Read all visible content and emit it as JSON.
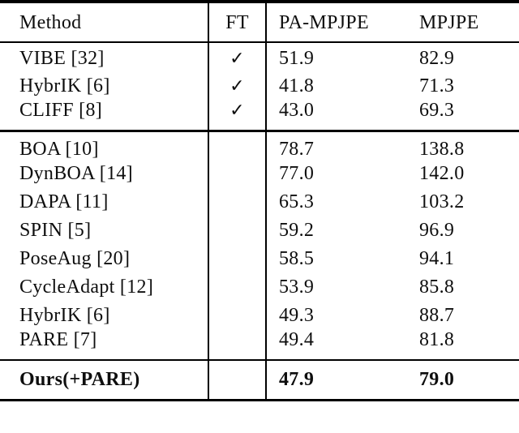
{
  "page": {
    "background": "#ffffff",
    "text_color": "#0e0e0e",
    "rule_color": "#000000"
  },
  "table": {
    "headers": {
      "method": "Method",
      "ft": "FT",
      "pa_mpjpe": "PA-MPJPE",
      "mpjpe": "MPJPE"
    },
    "checkmark": "✓",
    "sections": [
      {
        "rows": [
          {
            "method": "VIBE [32]",
            "ft": true,
            "pa_mpjpe": "51.9",
            "mpjpe": "82.9"
          },
          {
            "method": "HybrIK [6]",
            "ft": true,
            "pa_mpjpe": "41.8",
            "mpjpe": "71.3"
          },
          {
            "method": "CLIFF [8]",
            "ft": true,
            "pa_mpjpe": "43.0",
            "mpjpe": "69.3"
          }
        ]
      },
      {
        "rows": [
          {
            "method": "BOA [10]",
            "ft": false,
            "pa_mpjpe": "78.7",
            "mpjpe": "138.8"
          },
          {
            "method": "DynBOA [14]",
            "ft": false,
            "pa_mpjpe": "77.0",
            "mpjpe": "142.0"
          },
          {
            "method": "DAPA [11]",
            "ft": false,
            "pa_mpjpe": "65.3",
            "mpjpe": "103.2"
          },
          {
            "method": "SPIN [5]",
            "ft": false,
            "pa_mpjpe": "59.2",
            "mpjpe": "96.9"
          },
          {
            "method": "PoseAug [20]",
            "ft": false,
            "pa_mpjpe": "58.5",
            "mpjpe": "94.1"
          },
          {
            "method": "CycleAdapt [12]",
            "ft": false,
            "pa_mpjpe": "53.9",
            "mpjpe": "85.8"
          },
          {
            "method": "HybrIK [6]",
            "ft": false,
            "pa_mpjpe": "49.3",
            "mpjpe": "88.7"
          },
          {
            "method": "PARE [7]",
            "ft": false,
            "pa_mpjpe": "49.4",
            "mpjpe": "81.8"
          }
        ]
      },
      {
        "rows": [
          {
            "method": "Ours(+PARE)",
            "ft": false,
            "pa_mpjpe": "47.9",
            "mpjpe": "79.0",
            "bold": true
          }
        ]
      }
    ]
  }
}
